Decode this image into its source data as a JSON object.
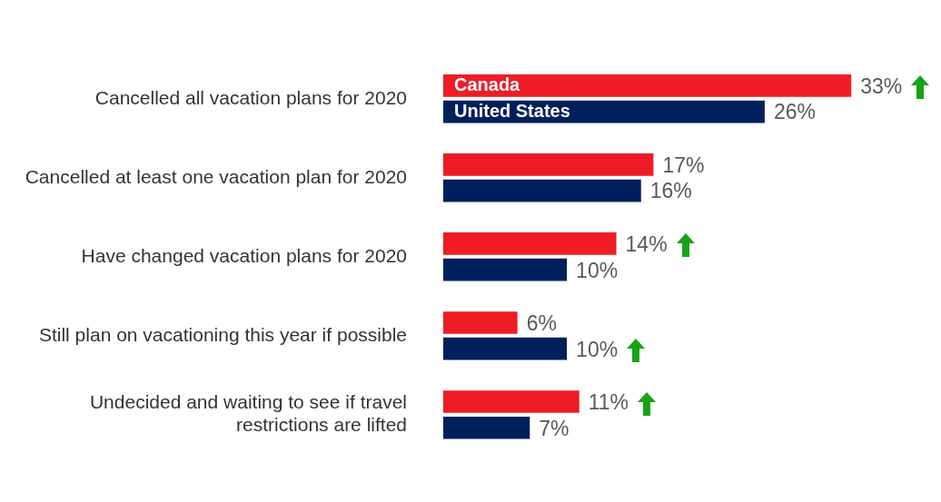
{
  "chart_data": {
    "type": "bar",
    "orientation": "horizontal",
    "categories": [
      "Cancelled all vacation plans for 2020",
      "Cancelled at least one vacation plan for 2020",
      "Have changed vacation plans for 2020",
      "Still plan on vacationing this year if possible",
      "Undecided and waiting to see if travel restrictions are lifted"
    ],
    "series": [
      {
        "name": "Canada",
        "color": "#ee1c25",
        "values": [
          33,
          17,
          14,
          6,
          11
        ],
        "value_labels": [
          "33%",
          "17%",
          "14%",
          "6%",
          "11%"
        ]
      },
      {
        "name": "United States",
        "color": "#00205b",
        "values": [
          26,
          16,
          10,
          10,
          7
        ],
        "value_labels": [
          "26%",
          "16%",
          "10%",
          "10%",
          "7%"
        ]
      }
    ],
    "grid": false
  }
}
